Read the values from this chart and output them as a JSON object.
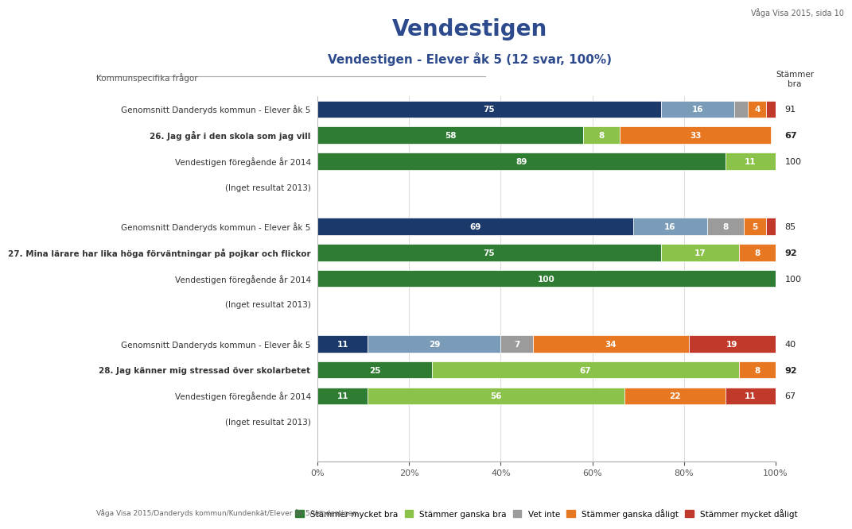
{
  "title": "Vendestigen",
  "subtitle": "Vendestigen - Elever åk 5 (12 svar, 100%)",
  "top_right_text": "Våga Visa 2015, sida 10",
  "bottom_left_text": "Våga Visa 2015/Danderyds kommun/Kundenkät/Elever åk 5/Vendestigen",
  "section_label": "Kommunspecifika frågor",
  "right_header": "Stämmer\nbra",
  "color_schemes": {
    "blue": [
      "#1b3a6b",
      "#7b9cb8",
      "#9b9b9b",
      "#e87722",
      "#c0392b"
    ],
    "green": [
      "#2e7d32",
      "#8bc34a",
      "#9b9b9b",
      "#e87722",
      "#c0392b"
    ]
  },
  "groups": [
    {
      "bars": [
        {
          "label": "Genomsnitt Danderyds kommun - Elever åk 5",
          "values": [
            75,
            16,
            3,
            4,
            2
          ],
          "score": 91,
          "bold": false,
          "scheme": "blue"
        },
        {
          "label": "26. Jag går i den skola som jag vill",
          "values": [
            58,
            8,
            0,
            33,
            0
          ],
          "score": 67,
          "bold": true,
          "scheme": "green"
        },
        {
          "label": "Vendestigen föregående år 2014",
          "values": [
            89,
            11,
            0,
            0,
            0
          ],
          "score": 100,
          "bold": false,
          "scheme": "green"
        },
        {
          "label": "(Inget resultat 2013)",
          "values": [],
          "score": null,
          "bold": false,
          "scheme": "green"
        }
      ]
    },
    {
      "bars": [
        {
          "label": "Genomsnitt Danderyds kommun - Elever åk 5",
          "values": [
            69,
            16,
            8,
            5,
            2
          ],
          "score": 85,
          "bold": false,
          "scheme": "blue"
        },
        {
          "label": "27. Mina lärare har lika höga förväntningar på pojkar och flickor",
          "values": [
            75,
            17,
            0,
            8,
            0
          ],
          "score": 92,
          "bold": true,
          "scheme": "green"
        },
        {
          "label": "Vendestigen föregående år 2014",
          "values": [
            100,
            0,
            0,
            0,
            0
          ],
          "score": 100,
          "bold": false,
          "scheme": "green"
        },
        {
          "label": "(Inget resultat 2013)",
          "values": [],
          "score": null,
          "bold": false,
          "scheme": "green"
        }
      ]
    },
    {
      "bars": [
        {
          "label": "Genomsnitt Danderyds kommun - Elever åk 5",
          "values": [
            11,
            29,
            7,
            34,
            19
          ],
          "score": 40,
          "bold": false,
          "scheme": "blue"
        },
        {
          "label": "28. Jag känner mig stressad över skolarbetet",
          "values": [
            25,
            67,
            0,
            8,
            0
          ],
          "score": 92,
          "bold": true,
          "scheme": "green"
        },
        {
          "label": "Vendestigen föregående år 2014",
          "values": [
            11,
            56,
            0,
            22,
            11
          ],
          "score": 67,
          "bold": false,
          "scheme": "green"
        },
        {
          "label": "(Inget resultat 2013)",
          "values": [],
          "score": null,
          "bold": false,
          "scheme": "green"
        }
      ]
    }
  ],
  "legend_labels": [
    "Stämmer mycket bra",
    "Stämmer ganska bra",
    "Vet inte",
    "Stämmer ganska dåligt",
    "Stämmer mycket dåligt"
  ],
  "legend_colors": [
    "#2e7d32",
    "#8bc34a",
    "#9b9b9b",
    "#e87722",
    "#c0392b"
  ]
}
